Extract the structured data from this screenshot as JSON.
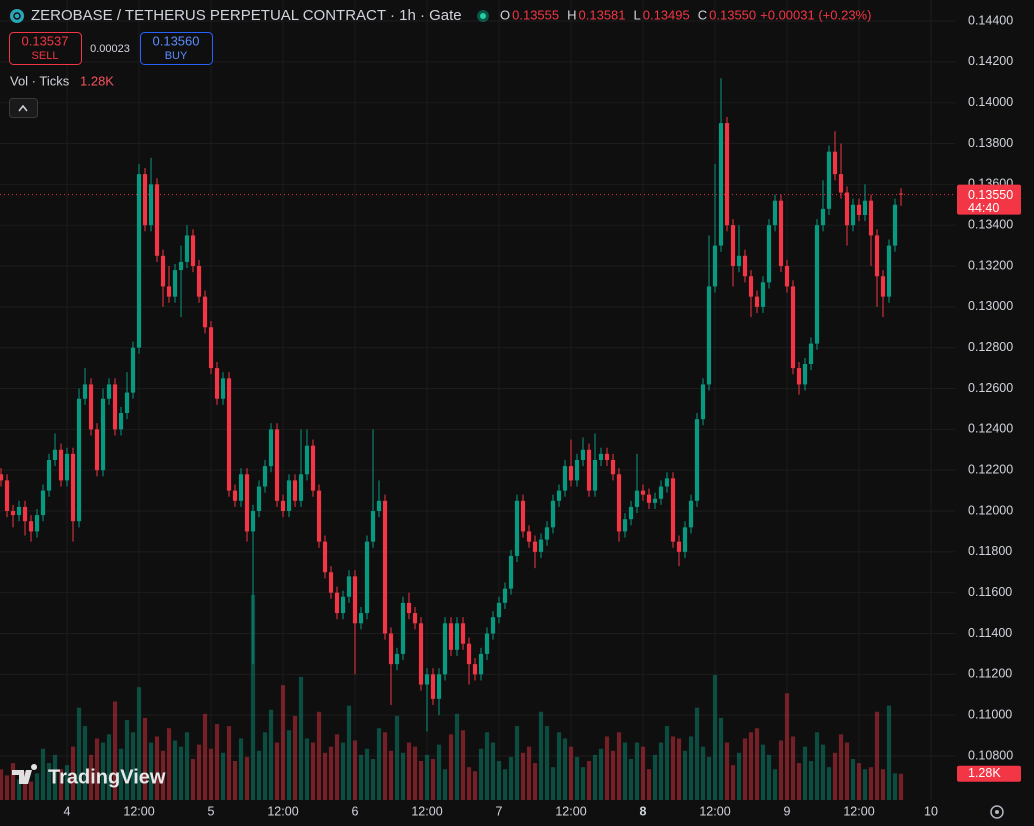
{
  "chart_data": {
    "type": "candlestick",
    "title": "ZEROBASE / TETHERUS PERPETUAL CONTRACT · 1h · Gate",
    "legend_ohlc": [
      {
        "key": "O",
        "value": "0.13555"
      },
      {
        "key": "H",
        "value": "0.13581"
      },
      {
        "key": "L",
        "value": "0.13495"
      },
      {
        "key": "C",
        "value": "0.13550"
      }
    ],
    "change": "+0.00031 (+0.23%)",
    "sell": {
      "price": "0.13537",
      "label": "SELL"
    },
    "spread": "0.00023",
    "buy": {
      "price": "0.13560",
      "label": "BUY"
    },
    "volume_title": "Vol · Ticks",
    "volume_last_label": "1.28K",
    "countdown": "44:40",
    "brand": "TradingView",
    "last_price": {
      "value": 0.1355,
      "label": "0.13550"
    },
    "up_color": "#089981",
    "down_color": "#f23645",
    "grid": true,
    "x": [
      -11,
      -10,
      -9,
      -8,
      -7,
      -6,
      -5,
      -4,
      -3,
      -2,
      -1,
      0,
      1,
      2,
      3,
      4,
      5,
      6,
      7,
      8,
      9,
      10,
      11,
      12,
      13,
      14,
      15,
      16,
      17,
      18,
      19,
      20,
      21,
      22,
      23,
      24,
      25,
      26,
      27,
      28,
      29,
      30,
      31,
      32,
      33,
      34,
      35,
      36,
      37,
      38,
      39,
      40,
      41,
      42,
      43,
      44,
      45,
      46,
      47,
      48,
      49,
      50,
      51,
      52,
      53,
      54,
      55,
      56,
      57,
      58,
      59,
      60,
      61,
      62,
      63,
      64,
      65,
      66,
      67,
      68,
      69,
      70,
      71,
      72,
      73,
      74,
      75,
      76,
      77,
      78,
      79,
      80,
      81,
      82,
      83,
      84,
      85,
      86,
      87,
      88,
      89,
      90,
      91,
      92,
      93,
      94,
      95,
      96,
      97,
      98,
      99,
      100,
      101,
      102,
      103,
      104,
      105,
      106,
      107,
      108,
      109,
      110,
      111,
      112,
      113,
      114,
      115,
      116,
      117,
      118,
      119,
      120,
      121,
      122,
      123,
      124,
      125,
      126,
      127,
      128,
      129,
      130,
      131,
      132,
      133,
      134,
      135,
      136,
      137,
      138,
      139
    ],
    "open": [
      0.1218,
      0.1215,
      0.12,
      0.1198,
      0.1202,
      0.1195,
      0.119,
      0.1198,
      0.121,
      0.1225,
      0.123,
      0.1215,
      0.1228,
      0.1195,
      0.1255,
      0.1262,
      0.124,
      0.122,
      0.1255,
      0.1262,
      0.124,
      0.1248,
      0.1258,
      0.128,
      0.1365,
      0.134,
      0.136,
      0.1325,
      0.131,
      0.1305,
      0.1318,
      0.1322,
      0.1335,
      0.132,
      0.1305,
      0.129,
      0.127,
      0.1255,
      0.1265,
      0.121,
      0.1205,
      0.1218,
      0.119,
      0.12,
      0.1212,
      0.1222,
      0.124,
      0.1205,
      0.12,
      0.1215,
      0.1205,
      0.1218,
      0.1232,
      0.121,
      0.1185,
      0.117,
      0.116,
      0.115,
      0.1158,
      0.1168,
      0.1145,
      0.115,
      0.1185,
      0.12,
      0.1205,
      0.114,
      0.1125,
      0.113,
      0.1155,
      0.115,
      0.1145,
      0.1115,
      0.112,
      0.1108,
      0.112,
      0.1145,
      0.1132,
      0.1145,
      0.1135,
      0.1125,
      0.112,
      0.113,
      0.114,
      0.1148,
      0.1155,
      0.1162,
      0.1178,
      0.1205,
      0.119,
      0.1185,
      0.118,
      0.1186,
      0.1192,
      0.1205,
      0.121,
      0.1222,
      0.1215,
      0.1225,
      0.123,
      0.121,
      0.1225,
      0.1228,
      0.1225,
      0.1218,
      0.119,
      0.1196,
      0.1202,
      0.121,
      0.1208,
      0.1204,
      0.1206,
      0.1212,
      0.1216,
      0.1185,
      0.118,
      0.1192,
      0.1205,
      0.1245,
      0.1262,
      0.131,
      0.133,
      0.139,
      0.134,
      0.132,
      0.1325,
      0.1315,
      0.1305,
      0.13,
      0.1312,
      0.134,
      0.1352,
      0.132,
      0.131,
      0.127,
      0.1262,
      0.1272,
      0.1282,
      0.134,
      0.1348,
      0.1376,
      0.1365,
      0.1356,
      0.134,
      0.135,
      0.1345,
      0.1352,
      0.1335,
      0.1315,
      0.1305,
      0.133,
      0.13555
    ],
    "high": [
      0.1221,
      0.1218,
      0.1203,
      0.1205,
      0.1205,
      0.1198,
      0.1201,
      0.1213,
      0.1228,
      0.1238,
      0.1233,
      0.1231,
      0.1231,
      0.126,
      0.127,
      0.1265,
      0.1243,
      0.126,
      0.1265,
      0.1265,
      0.1251,
      0.1268,
      0.1283,
      0.137,
      0.1368,
      0.1373,
      0.1363,
      0.1328,
      0.132,
      0.1321,
      0.133,
      0.134,
      0.1338,
      0.1323,
      0.1308,
      0.1293,
      0.1273,
      0.1268,
      0.1268,
      0.1213,
      0.1221,
      0.1221,
      0.1203,
      0.1215,
      0.1225,
      0.1243,
      0.1243,
      0.1208,
      0.1218,
      0.1218,
      0.124,
      0.124,
      0.1235,
      0.1213,
      0.1188,
      0.1173,
      0.1163,
      0.1161,
      0.1171,
      0.1171,
      0.1153,
      0.1188,
      0.124,
      0.1215,
      0.1208,
      0.1143,
      0.1133,
      0.1158,
      0.116,
      0.1153,
      0.1148,
      0.1123,
      0.1123,
      0.1123,
      0.1148,
      0.1148,
      0.1148,
      0.1148,
      0.1138,
      0.1128,
      0.1133,
      0.1143,
      0.1151,
      0.1158,
      0.1165,
      0.1181,
      0.1208,
      0.1208,
      0.1193,
      0.1188,
      0.1189,
      0.1195,
      0.1208,
      0.1213,
      0.1225,
      0.1235,
      0.1228,
      0.1236,
      0.1233,
      0.1238,
      0.1231,
      0.1231,
      0.1228,
      0.1221,
      0.1199,
      0.1205,
      0.1228,
      0.1213,
      0.1211,
      0.1209,
      0.1215,
      0.1219,
      0.1219,
      0.1188,
      0.1195,
      0.1208,
      0.1248,
      0.1265,
      0.1335,
      0.137,
      0.1412,
      0.1393,
      0.1343,
      0.134,
      0.1328,
      0.1318,
      0.1308,
      0.1315,
      0.1343,
      0.1355,
      0.1355,
      0.1323,
      0.1313,
      0.1273,
      0.1275,
      0.1285,
      0.1343,
      0.1362,
      0.1379,
      0.1386,
      0.138,
      0.1359,
      0.1353,
      0.1353,
      0.136,
      0.1355,
      0.1338,
      0.1318,
      0.1333,
      0.1353,
      0.13581
    ],
    "low": [
      0.1212,
      0.1197,
      0.1192,
      0.1195,
      0.1188,
      0.1185,
      0.1187,
      0.1195,
      0.1207,
      0.1222,
      0.1212,
      0.1212,
      0.1185,
      0.1192,
      0.1252,
      0.1237,
      0.1217,
      0.1217,
      0.1252,
      0.1237,
      0.1237,
      0.1245,
      0.1255,
      0.1277,
      0.1337,
      0.1337,
      0.1322,
      0.13,
      0.1302,
      0.1302,
      0.1295,
      0.1319,
      0.1317,
      0.1302,
      0.1287,
      0.1267,
      0.1252,
      0.1252,
      0.1207,
      0.1202,
      0.1202,
      0.1185,
      0.1125,
      0.1197,
      0.1209,
      0.1219,
      0.1202,
      0.1197,
      0.1197,
      0.1202,
      0.1202,
      0.1215,
      0.1207,
      0.1182,
      0.1167,
      0.1157,
      0.1147,
      0.1147,
      0.1155,
      0.112,
      0.1142,
      0.1147,
      0.1182,
      0.1197,
      0.1137,
      0.1105,
      0.1122,
      0.1127,
      0.1147,
      0.1142,
      0.1112,
      0.1092,
      0.1105,
      0.11,
      0.1117,
      0.1129,
      0.1129,
      0.1132,
      0.1115,
      0.1117,
      0.1117,
      0.1127,
      0.1137,
      0.1145,
      0.1152,
      0.1159,
      0.1175,
      0.1187,
      0.1182,
      0.1172,
      0.1177,
      0.1183,
      0.1189,
      0.1202,
      0.1207,
      0.1212,
      0.1212,
      0.1222,
      0.1207,
      0.1207,
      0.1222,
      0.1222,
      0.1215,
      0.1185,
      0.1187,
      0.1193,
      0.1199,
      0.1205,
      0.1201,
      0.1201,
      0.1203,
      0.1209,
      0.1182,
      0.1173,
      0.1177,
      0.1189,
      0.1202,
      0.1242,
      0.1259,
      0.1307,
      0.1327,
      0.1337,
      0.131,
      0.1317,
      0.1312,
      0.1295,
      0.1297,
      0.1297,
      0.1309,
      0.1337,
      0.1317,
      0.1307,
      0.1267,
      0.1257,
      0.1259,
      0.1269,
      0.1279,
      0.1337,
      0.1345,
      0.1362,
      0.1353,
      0.133,
      0.1337,
      0.1342,
      0.1342,
      0.132,
      0.13,
      0.1295,
      0.1302,
      0.1327,
      0.13495
    ],
    "close": [
      0.1215,
      0.12,
      0.1198,
      0.1202,
      0.1195,
      0.119,
      0.1198,
      0.121,
      0.1225,
      0.123,
      0.1215,
      0.1228,
      0.1195,
      0.1255,
      0.1262,
      0.124,
      0.122,
      0.1255,
      0.1262,
      0.124,
      0.1248,
      0.1258,
      0.128,
      0.1365,
      0.134,
      0.136,
      0.1325,
      0.131,
      0.1305,
      0.1318,
      0.1322,
      0.1335,
      0.132,
      0.1305,
      0.129,
      0.127,
      0.1255,
      0.1265,
      0.121,
      0.1205,
      0.1218,
      0.119,
      0.12,
      0.1212,
      0.1222,
      0.124,
      0.1205,
      0.12,
      0.1215,
      0.1205,
      0.1218,
      0.1232,
      0.121,
      0.1185,
      0.117,
      0.116,
      0.115,
      0.1158,
      0.1168,
      0.1145,
      0.115,
      0.1185,
      0.12,
      0.1205,
      0.114,
      0.1125,
      0.113,
      0.1155,
      0.115,
      0.1145,
      0.1115,
      0.112,
      0.1108,
      0.112,
      0.1145,
      0.1132,
      0.1145,
      0.1135,
      0.1125,
      0.112,
      0.113,
      0.114,
      0.1148,
      0.1155,
      0.1162,
      0.1178,
      0.1205,
      0.119,
      0.1185,
      0.118,
      0.1186,
      0.1192,
      0.1205,
      0.121,
      0.1222,
      0.1215,
      0.1225,
      0.123,
      0.121,
      0.1225,
      0.1228,
      0.1225,
      0.1218,
      0.119,
      0.1196,
      0.1202,
      0.121,
      0.1208,
      0.1204,
      0.1206,
      0.1212,
      0.1216,
      0.1185,
      0.118,
      0.1192,
      0.1205,
      0.1245,
      0.1262,
      0.131,
      0.133,
      0.139,
      0.134,
      0.132,
      0.1325,
      0.1315,
      0.1305,
      0.13,
      0.1312,
      0.134,
      0.1352,
      0.132,
      0.131,
      0.127,
      0.1262,
      0.1272,
      0.1282,
      0.134,
      0.1348,
      0.1376,
      0.1365,
      0.1356,
      0.134,
      0.135,
      0.1345,
      0.1352,
      0.1335,
      0.1315,
      0.1305,
      0.133,
      0.135,
      0.1355
    ],
    "volume": [
      1500,
      1200,
      1800,
      1000,
      1400,
      900,
      1300,
      2500,
      1800,
      2200,
      1500,
      1700,
      2600,
      4500,
      3600,
      2200,
      3000,
      2800,
      3200,
      4800,
      2500,
      3900,
      3300,
      5500,
      4000,
      2800,
      3100,
      2400,
      3500,
      2900,
      2600,
      3300,
      2000,
      2700,
      4200,
      2500,
      3700,
      2300,
      3600,
      1900,
      3000,
      2100,
      10000,
      2400,
      3300,
      4400,
      2800,
      5600,
      3400,
      4100,
      6000,
      3000,
      2800,
      4300,
      2300,
      2600,
      3200,
      2800,
      4600,
      2900,
      2200,
      2500,
      2000,
      3500,
      3300,
      2400,
      4100,
      2300,
      2800,
      2600,
      1900,
      2200,
      2000,
      2700,
      1500,
      3200,
      4200,
      3400,
      1600,
      1400,
      2500,
      3300,
      2800,
      1900,
      1500,
      2100,
      3600,
      2300,
      2600,
      1800,
      4300,
      3600,
      1600,
      3300,
      3000,
      2600,
      2100,
      1600,
      1900,
      2200,
      2500,
      3100,
      2400,
      3300,
      2800,
      2000,
      2800,
      2600,
      1500,
      2200,
      2800,
      3600,
      3100,
      3000,
      2400,
      3100,
      4500,
      2600,
      2100,
      6100,
      4000,
      2800,
      1700,
      2300,
      3000,
      3300,
      3500,
      2700,
      2200,
      1500,
      2900,
      5200,
      3100,
      1800,
      2600,
      1900,
      3300,
      2700,
      1600,
      2300,
      3200,
      2800,
      2000,
      1800,
      1500,
      1600,
      4300,
      1500,
      4600,
      1300,
      1280
    ],
    "xlim": [
      -11.17,
      148
    ],
    "xticks": [
      {
        "value": 0,
        "label": "4"
      },
      {
        "value": 12,
        "label": "12:00"
      },
      {
        "value": 24,
        "label": "5"
      },
      {
        "value": 36,
        "label": "12:00"
      },
      {
        "value": 48,
        "label": "6"
      },
      {
        "value": 60,
        "label": "12:00"
      },
      {
        "value": 72,
        "label": "7"
      },
      {
        "value": 84,
        "label": "12:00"
      },
      {
        "value": 96,
        "label": "8"
      },
      {
        "value": 108,
        "label": "12:00"
      },
      {
        "value": 120,
        "label": "9"
      },
      {
        "value": 132,
        "label": "12:00"
      },
      {
        "value": 144,
        "label": "10"
      }
    ],
    "ylim": [
      0.105845,
      0.14503
    ],
    "yticks": [
      {
        "value": 0.144,
        "label": "0.14400"
      },
      {
        "value": 0.142,
        "label": "0.14200"
      },
      {
        "value": 0.14,
        "label": "0.14000"
      },
      {
        "value": 0.138,
        "label": "0.13800"
      },
      {
        "value": 0.136,
        "label": "0.13600"
      },
      {
        "value": 0.134,
        "label": "0.13400"
      },
      {
        "value": 0.132,
        "label": "0.13200"
      },
      {
        "value": 0.13,
        "label": "0.13000"
      },
      {
        "value": 0.128,
        "label": "0.12800"
      },
      {
        "value": 0.126,
        "label": "0.12600"
      },
      {
        "value": 0.124,
        "label": "0.12400"
      },
      {
        "value": 0.122,
        "label": "0.12200"
      },
      {
        "value": 0.12,
        "label": "0.12000"
      },
      {
        "value": 0.118,
        "label": "0.11800"
      },
      {
        "value": 0.116,
        "label": "0.11600"
      },
      {
        "value": 0.114,
        "label": "0.11400"
      },
      {
        "value": 0.112,
        "label": "0.11200"
      },
      {
        "value": 0.11,
        "label": "0.11000"
      },
      {
        "value": 0.108,
        "label": "0.10800"
      }
    ],
    "volume_lim": [
      0,
      39000
    ]
  }
}
